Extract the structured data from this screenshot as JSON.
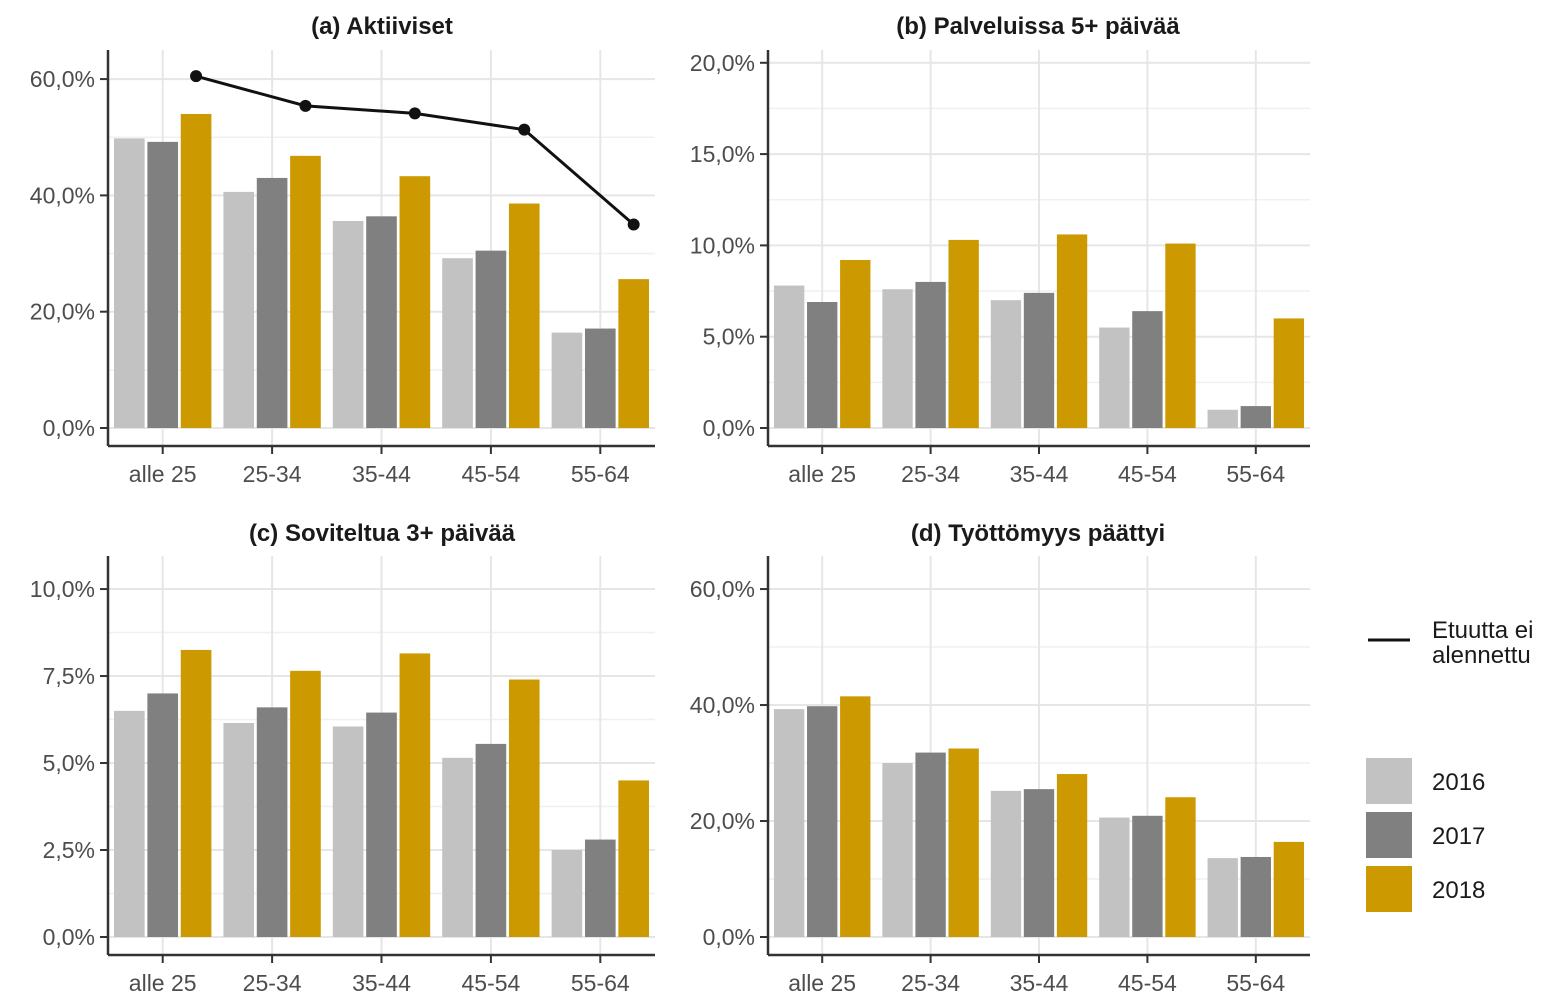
{
  "chart_data": [
    {
      "type": "bar",
      "title": "(a) Aktiiviset",
      "categories": [
        "alle 25",
        "25-34",
        "35-44",
        "45-54",
        "55-64"
      ],
      "ylim": [
        0,
        65
      ],
      "yticks": [
        0,
        20,
        40,
        60
      ],
      "ytick_labels": [
        "0,0%",
        "20,0%",
        "40,0%",
        "60,0%"
      ],
      "series": [
        {
          "name": "2016",
          "values": [
            49.8,
            40.6,
            35.6,
            29.2,
            16.4
          ]
        },
        {
          "name": "2017",
          "values": [
            49.2,
            43.0,
            36.4,
            30.5,
            17.1
          ]
        },
        {
          "name": "2018",
          "values": [
            54.0,
            46.8,
            43.3,
            38.6,
            25.6
          ]
        }
      ],
      "line_series": {
        "name": "Etuutta ei alennettu",
        "values": [
          60.5,
          55.4,
          54.1,
          51.3,
          35.0
        ]
      }
    },
    {
      "type": "bar",
      "title": "(b) Palveluissa 5+ päivää",
      "categories": [
        "alle 25",
        "25-34",
        "35-44",
        "45-54",
        "55-64"
      ],
      "ylim": [
        0,
        20.7
      ],
      "yticks": [
        0,
        5,
        10,
        15,
        20
      ],
      "ytick_labels": [
        "0,0%",
        "5,0%",
        "10,0%",
        "15,0%",
        "20,0%"
      ],
      "series": [
        {
          "name": "2016",
          "values": [
            7.8,
            7.6,
            7.0,
            5.5,
            1.0
          ]
        },
        {
          "name": "2017",
          "values": [
            6.9,
            8.0,
            7.4,
            6.4,
            1.2
          ]
        },
        {
          "name": "2018",
          "values": [
            9.2,
            10.3,
            10.6,
            10.1,
            6.0
          ]
        }
      ]
    },
    {
      "type": "bar",
      "title": "(c) Soviteltua 3+ päivää",
      "categories": [
        "alle 25",
        "25-34",
        "35-44",
        "45-54",
        "55-64"
      ],
      "ylim": [
        0,
        10.95
      ],
      "yticks": [
        0,
        2.5,
        5,
        7.5,
        10
      ],
      "ytick_labels": [
        "0,0%",
        "2,5%",
        "5,0%",
        "7,5%",
        "10,0%"
      ],
      "series": [
        {
          "name": "2016",
          "values": [
            6.5,
            6.15,
            6.05,
            5.15,
            2.5
          ]
        },
        {
          "name": "2017",
          "values": [
            7.0,
            6.6,
            6.45,
            5.55,
            2.8
          ]
        },
        {
          "name": "2018",
          "values": [
            8.25,
            7.65,
            8.15,
            7.4,
            4.5
          ]
        }
      ]
    },
    {
      "type": "bar",
      "title": "(d) Työttömyys päättyi",
      "categories": [
        "alle 25",
        "25-34",
        "35-44",
        "45-54",
        "55-64"
      ],
      "ylim": [
        0,
        65.7
      ],
      "yticks": [
        0,
        20,
        40,
        60
      ],
      "ytick_labels": [
        "0,0%",
        "20,0%",
        "40,0%",
        "60,0%"
      ],
      "series": [
        {
          "name": "2016",
          "values": [
            39.3,
            30.0,
            25.2,
            20.6,
            13.6
          ]
        },
        {
          "name": "2017",
          "values": [
            39.8,
            31.8,
            25.5,
            20.9,
            13.8
          ]
        },
        {
          "name": "2018",
          "values": [
            41.5,
            32.5,
            28.1,
            24.1,
            16.4
          ]
        }
      ]
    }
  ],
  "colors": {
    "2016": "#c2c2c2",
    "2017": "#808080",
    "2018": "#cc9900",
    "line": "#111111"
  },
  "legend": {
    "line_label_lines": [
      "Etuutta ei",
      "alennettu"
    ],
    "years": [
      "2016",
      "2017",
      "2018"
    ]
  }
}
